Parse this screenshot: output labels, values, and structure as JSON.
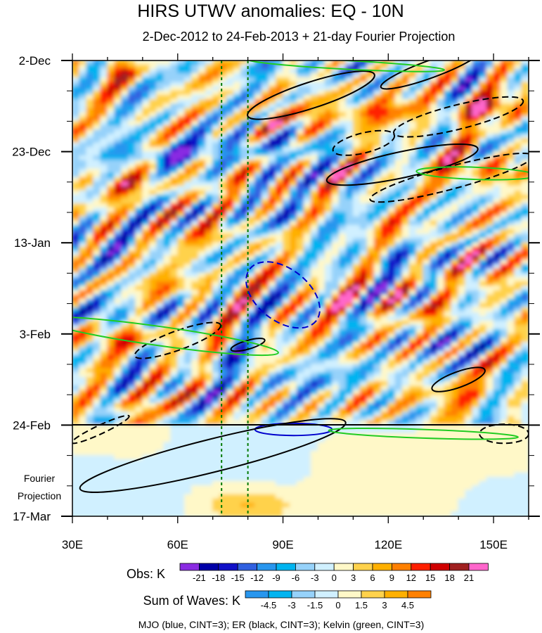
{
  "chart_data": {
    "type": "heatmap",
    "title": "HIRS UTWV anomalies: EQ - 10N",
    "subtitle": "2-Dec-2012 to 24-Feb-2013 + 21-day Fourier Projection",
    "x_axis": {
      "ticks": [
        30,
        60,
        90,
        120,
        150
      ],
      "tick_labels": [
        "30E",
        "60E",
        "90E",
        "120E",
        "150E"
      ],
      "range": [
        30,
        160
      ]
    },
    "y_axis": {
      "tick_labels": [
        "2-Dec",
        "23-Dec",
        "13-Jan",
        "3-Feb",
        "24-Feb",
        "17-Mar"
      ],
      "tick_days": [
        0,
        21,
        42,
        63,
        84,
        105
      ],
      "range_days": [
        0,
        105
      ]
    },
    "projection_start_day": 84,
    "projection_label_line1": "Fourier",
    "projection_label_line2": "Projection",
    "reference_longitudes": [
      72.5,
      80
    ],
    "obs_colorbar": {
      "label": "Obs: K",
      "levels": [
        "-21",
        "-18",
        "-15",
        "-12",
        "-9",
        "-6",
        "-3",
        "0",
        "3",
        "6",
        "9",
        "12",
        "15",
        "18",
        "21"
      ],
      "colors": [
        "#8a2be2",
        "#0000a8",
        "#1010c8",
        "#3060e0",
        "#2896ee",
        "#00b4f0",
        "#96d2fa",
        "#d0f0ff",
        "#fff8c8",
        "#ffd24c",
        "#ffb000",
        "#ff8000",
        "#ff2000",
        "#d00000",
        "#a02020",
        "#ff66cc"
      ]
    },
    "waves_colorbar": {
      "label": "Sum of Waves: K",
      "levels": [
        "-4.5",
        "-3",
        "-1.5",
        "0",
        "1.5",
        "3",
        "4.5"
      ],
      "colors": [
        "#2896ee",
        "#00b4f0",
        "#96d2fa",
        "#d0f0ff",
        "#fff8c8",
        "#ffd24c",
        "#ffb000",
        "#ff8000"
      ]
    },
    "legend_note": "MJO (blue, CINT=3); ER (black, CINT=3); Kelvin (green, CINT=3)",
    "series": [
      {
        "name": "MJO",
        "color": "#0000cc",
        "contours": [
          {
            "positive": false,
            "center": [
              90,
              54
            ],
            "semi_axes_deg_days": [
              12,
              6
            ],
            "angle_deg": 38
          },
          {
            "positive": true,
            "center": [
              93,
              85
            ],
            "semi_axes_deg_days": [
              11,
              1.4
            ],
            "angle_deg": 0
          }
        ]
      },
      {
        "name": "ER",
        "color": "#000000",
        "contours": [
          {
            "positive": true,
            "center": [
              98,
              8
            ],
            "semi_axes_deg_days": [
              19,
              3
            ],
            "angle_deg": -18
          },
          {
            "positive": false,
            "center": [
              113,
              19
            ],
            "semi_axes_deg_days": [
              9,
              2.3
            ],
            "angle_deg": -14
          },
          {
            "positive": true,
            "center": [
              132,
              2
            ],
            "semi_axes_deg_days": [
              15,
              2
            ],
            "angle_deg": -20
          },
          {
            "positive": false,
            "center": [
              140,
              13
            ],
            "semi_axes_deg_days": [
              19,
              2.8
            ],
            "angle_deg": -14
          },
          {
            "positive": true,
            "center": [
              124,
              24
            ],
            "semi_axes_deg_days": [
              22,
              3
            ],
            "angle_deg": -12
          },
          {
            "positive": false,
            "center": [
              138,
              27
            ],
            "semi_axes_deg_days": [
              24,
              2.6
            ],
            "angle_deg": -15
          },
          {
            "positive": false,
            "center": [
              60,
              64.5
            ],
            "semi_axes_deg_days": [
              13,
              2.2
            ],
            "angle_deg": -20
          },
          {
            "positive": true,
            "center": [
              80,
              65.5
            ],
            "semi_axes_deg_days": [
              5,
              1
            ],
            "angle_deg": -16
          },
          {
            "positive": true,
            "center": [
              140,
              73.5
            ],
            "semi_axes_deg_days": [
              8,
              1.8
            ],
            "angle_deg": -20
          },
          {
            "positive": true,
            "center": [
              70,
              91
            ],
            "semi_axes_deg_days": [
              39,
              3.8
            ],
            "angle_deg": -14
          },
          {
            "positive": false,
            "center": [
              153,
              86
            ],
            "semi_axes_deg_days": [
              7,
              2.2
            ],
            "angle_deg": 0
          },
          {
            "positive": false,
            "center": [
              38,
              85
            ],
            "semi_axes_deg_days": [
              9,
              1
            ],
            "angle_deg": -25
          }
        ]
      },
      {
        "name": "Kelvin",
        "color": "#22cc22",
        "contours": [
          {
            "positive": true,
            "center": [
              55,
              63.5
            ],
            "semi_axes_deg_days": [
              34,
              2.2
            ],
            "angle_deg": 8
          },
          {
            "positive": true,
            "center": [
              108,
              1
            ],
            "semi_axes_deg_days": [
              28,
              1
            ],
            "angle_deg": 3
          },
          {
            "positive": true,
            "center": [
              145,
              26
            ],
            "semi_axes_deg_days": [
              17,
              1.4
            ],
            "angle_deg": 2
          },
          {
            "positive": true,
            "center": [
              130,
              86
            ],
            "semi_axes_deg_days": [
              27,
              1
            ],
            "angle_deg": 2
          }
        ]
      }
    ]
  }
}
